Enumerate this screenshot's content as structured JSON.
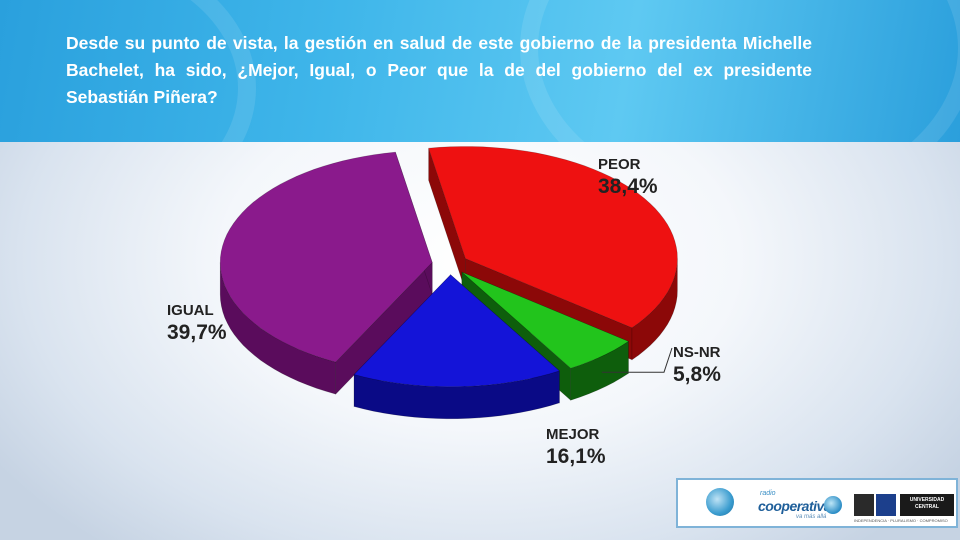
{
  "header": {
    "question": "Desde su punto de vista, la gestión en salud de este gobierno de la presidenta Michelle Bachelet, ha sido, ¿Mejor, Igual, o Peor que la de del gobierno del ex presidente Sebastián Piñera?"
  },
  "chart_data": {
    "type": "pie",
    "title": "",
    "style": "3d-exploded",
    "slices": [
      {
        "label": "PEOR",
        "value_label": "38,4%",
        "value": 38.4,
        "color": "#ee1111",
        "side_color": "#8c0808"
      },
      {
        "label": "NS-NR",
        "value_label": "5,8%",
        "value": 5.8,
        "color": "#22c41c",
        "side_color": "#0e5e0c"
      },
      {
        "label": "MEJOR",
        "value_label": "16,1%",
        "value": 16.1,
        "color": "#1414d8",
        "side_color": "#0a0a86"
      },
      {
        "label": "IGUAL",
        "value_label": "39,7%",
        "value": 39.7,
        "color": "#8a1a8c",
        "side_color": "#5a0c5c"
      }
    ]
  },
  "logos": {
    "radio_small": "radio",
    "brand": "cooperativa",
    "brand_tagline": "va más allá",
    "university": "UNIVERSIDAD CENTRAL",
    "university_tagline": "INDEPENDENCIA · PLURALISMO · COMPROMISO"
  }
}
